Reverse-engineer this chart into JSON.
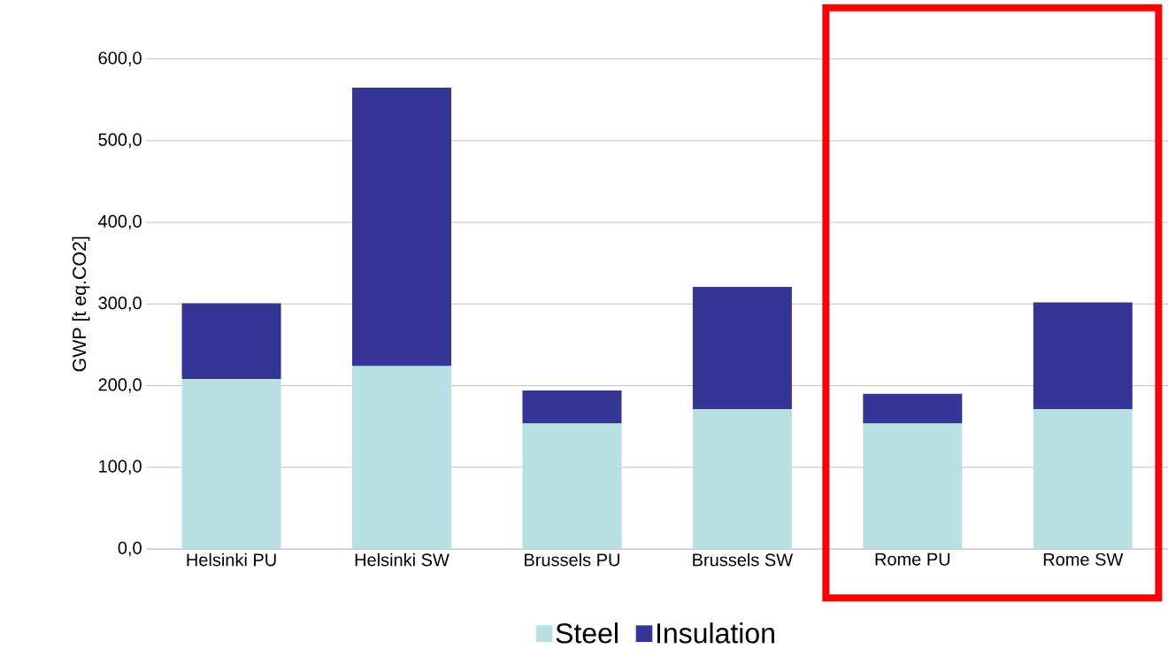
{
  "chart_data": {
    "type": "bar",
    "stacked": true,
    "ylabel": "GWP [t eq.CO2]",
    "categories": [
      "Helsinki PU",
      "Helsinki SW",
      "Brussels PU",
      "Brussels SW",
      "Rome PU",
      "Rome SW"
    ],
    "series": [
      {
        "name": "Steel",
        "color": "#b8dfe2",
        "values": [
          208,
          224,
          154,
          171,
          154,
          171
        ]
      },
      {
        "name": "Insulation",
        "color": "#353596",
        "values": [
          93,
          341,
          40,
          150,
          36,
          131
        ]
      }
    ],
    "ylim": [
      0,
      600
    ],
    "yticks": [
      {
        "value": 0,
        "label": "0,0"
      },
      {
        "value": 100,
        "label": "100,0"
      },
      {
        "value": 200,
        "label": "200,0"
      },
      {
        "value": 300,
        "label": "300,0"
      },
      {
        "value": 400,
        "label": "400,0"
      },
      {
        "value": 500,
        "label": "500,0"
      },
      {
        "value": 600,
        "label": "600,0"
      }
    ],
    "grid": "y",
    "legend": "bottom"
  }
}
